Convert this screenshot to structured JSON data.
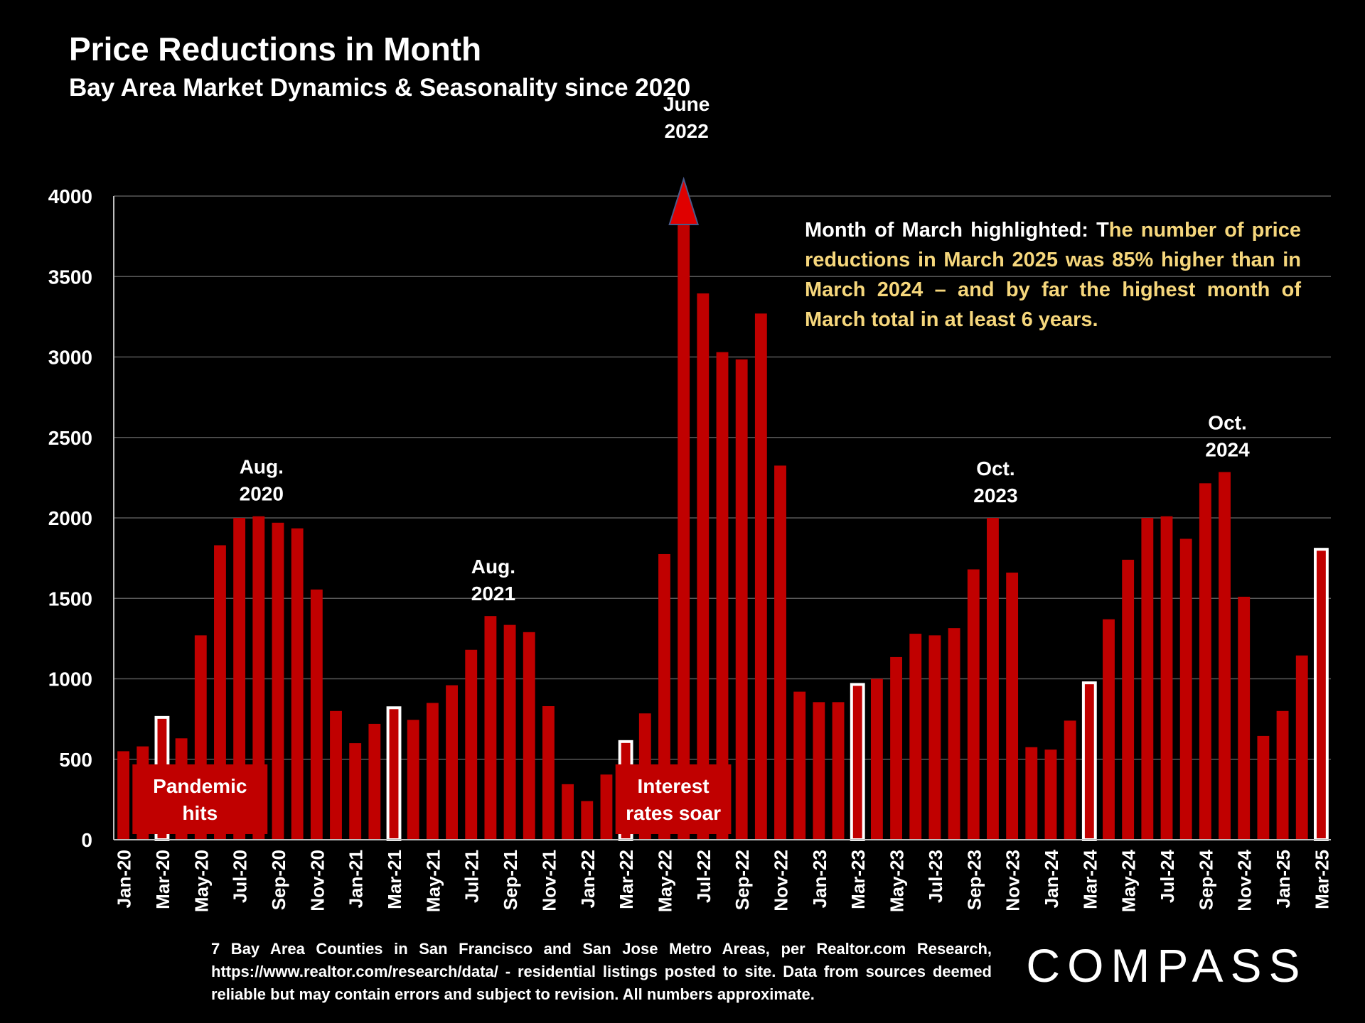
{
  "title": "Price Reductions in Month",
  "subtitle": "Bay Area Market Dynamics & Seasonality since 2020",
  "annotation": {
    "lead": "Month of March highlighted:  T",
    "highlight": "he number of price reductions in March 2025 was 85% higher than in March 2024 – and by far the highest month of March total in at least 6 years."
  },
  "footer": "7 Bay Area Counties in San Francisco and San Jose Metro Areas, per Realtor.com Research, https://www.realtor.com/research/data/ - residential listings posted to site.  Data from sources deemed reliable but may contain errors and subject to revision. All numbers approximate.",
  "logo_text": "COMPASS",
  "colors": {
    "bar": "#c00000",
    "highlight_outline": "#ffffff",
    "grid": "#595959",
    "accent_text": "#f6d77c",
    "arrow": "#e00000"
  },
  "chart_data": {
    "type": "bar",
    "title": "Price Reductions in Month",
    "subtitle": "Bay Area Market Dynamics & Seasonality since 2020",
    "ylim": [
      0,
      4000
    ],
    "yticks": [
      "0",
      "500",
      "1000",
      "1500",
      "2000",
      "2500",
      "3000",
      "3500",
      "4000"
    ],
    "grid": true,
    "categories": [
      "Jan-20",
      "Feb-20",
      "Mar-20",
      "Apr-20",
      "May-20",
      "Jun-20",
      "Jul-20",
      "Aug-20",
      "Sep-20",
      "Oct-20",
      "Nov-20",
      "Dec-20",
      "Jan-21",
      "Feb-21",
      "Mar-21",
      "Apr-21",
      "May-21",
      "Jun-21",
      "Jul-21",
      "Aug-21",
      "Sep-21",
      "Oct-21",
      "Nov-21",
      "Dec-21",
      "Jan-22",
      "Feb-22",
      "Mar-22",
      "Apr-22",
      "May-22",
      "Jun-22",
      "Jul-22",
      "Aug-22",
      "Sep-22",
      "Oct-22",
      "Nov-22",
      "Dec-22",
      "Jan-23",
      "Feb-23",
      "Mar-23",
      "Apr-23",
      "May-23",
      "Jun-23",
      "Jul-23",
      "Aug-23",
      "Sep-23",
      "Oct-23",
      "Nov-23",
      "Dec-23",
      "Jan-24",
      "Feb-24",
      "Mar-24",
      "Apr-24",
      "May-24",
      "Jun-24",
      "Jul-24",
      "Aug-24",
      "Sep-24",
      "Oct-24",
      "Nov-24",
      "Dec-24",
      "Jan-25",
      "Feb-25",
      "Mar-25"
    ],
    "values": [
      550,
      580,
      760,
      630,
      1270,
      1830,
      2000,
      2010,
      1970,
      1935,
      1555,
      800,
      600,
      720,
      820,
      745,
      850,
      960,
      1180,
      1390,
      1335,
      1290,
      830,
      345,
      240,
      405,
      610,
      785,
      1775,
      4000,
      3395,
      3030,
      2985,
      3270,
      2325,
      920,
      855,
      855,
      965,
      1000,
      1135,
      1280,
      1270,
      1315,
      1680,
      2000,
      1660,
      575,
      560,
      740,
      975,
      1370,
      1740,
      2000,
      2010,
      1870,
      2215,
      2285,
      1510,
      645,
      800,
      1145,
      1805
    ],
    "highlighted_months": [
      "Mar-20",
      "Mar-21",
      "Mar-22",
      "Mar-23",
      "Mar-24",
      "Mar-25"
    ],
    "x_tick_labels": [
      "Jan-20",
      "Mar-20",
      "May-20",
      "Jul-20",
      "Sep-20",
      "Nov-20",
      "Jan-21",
      "Mar-21",
      "May-21",
      "Jul-21",
      "Sep-21",
      "Nov-21",
      "Jan-22",
      "Mar-22",
      "May-22",
      "Jul-22",
      "Sep-22",
      "Nov-22",
      "Jan-23",
      "Mar-23",
      "May-23",
      "Jul-23",
      "Sep-23",
      "Nov-23",
      "Jan-24",
      "Mar-24",
      "May-24",
      "Jul-24",
      "Sep-24",
      "Nov-24",
      "Jan-25",
      "Mar-25"
    ],
    "peak_labels": [
      {
        "category": "Aug-20",
        "line1": "Aug.",
        "line2": "2020"
      },
      {
        "category": "Aug-21",
        "line1": "Aug.",
        "line2": "2021"
      },
      {
        "category": "Jun-22",
        "line1": "June",
        "line2": "2022"
      },
      {
        "category": "Oct-23",
        "line1": "Oct.",
        "line2": "2023"
      },
      {
        "category": "Oct-24",
        "line1": "Oct.",
        "line2": "2024"
      }
    ],
    "event_labels": [
      {
        "category_start": "Feb-20",
        "category_end": "Aug-20",
        "line1": "Pandemic",
        "line2": "hits"
      },
      {
        "category_start": "Mar-22",
        "category_end": "Aug-22",
        "line1": "Interest",
        "line2": "rates soar"
      }
    ],
    "arrow_at": "Jun-22"
  }
}
